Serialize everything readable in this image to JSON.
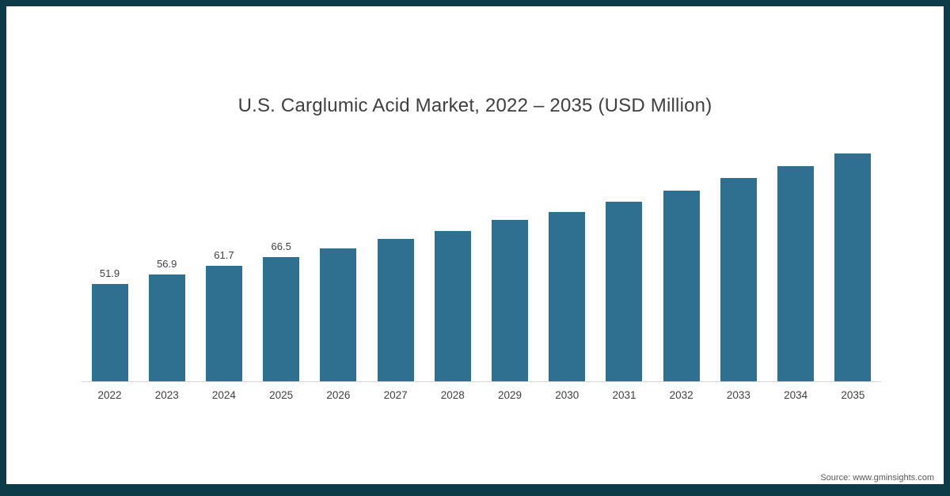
{
  "chart_data": {
    "type": "bar",
    "title": "U.S. Carglumic Acid Market, 2022 – 2035 (USD Million)",
    "categories": [
      "2022",
      "2023",
      "2024",
      "2025",
      "2026",
      "2027",
      "2028",
      "2029",
      "2030",
      "2031",
      "2032",
      "2033",
      "2034",
      "2035"
    ],
    "values": [
      51.9,
      56.9,
      61.7,
      66.5,
      71.0,
      76.0,
      80.5,
      86.0,
      90.5,
      96.0,
      102.0,
      108.5,
      115.0,
      123.0
    ],
    "value_labels_shown": 4,
    "xlabel": "",
    "ylabel": "",
    "ylim": [
      0,
      131
    ],
    "grid": false,
    "legend": false,
    "bar_color": "#2f6f8f",
    "axis_line_color": "#d6d6d6"
  },
  "footer": {
    "source_label": "Source: www.gminsights.com"
  },
  "frame": {
    "border_color": "#0d3b47"
  }
}
